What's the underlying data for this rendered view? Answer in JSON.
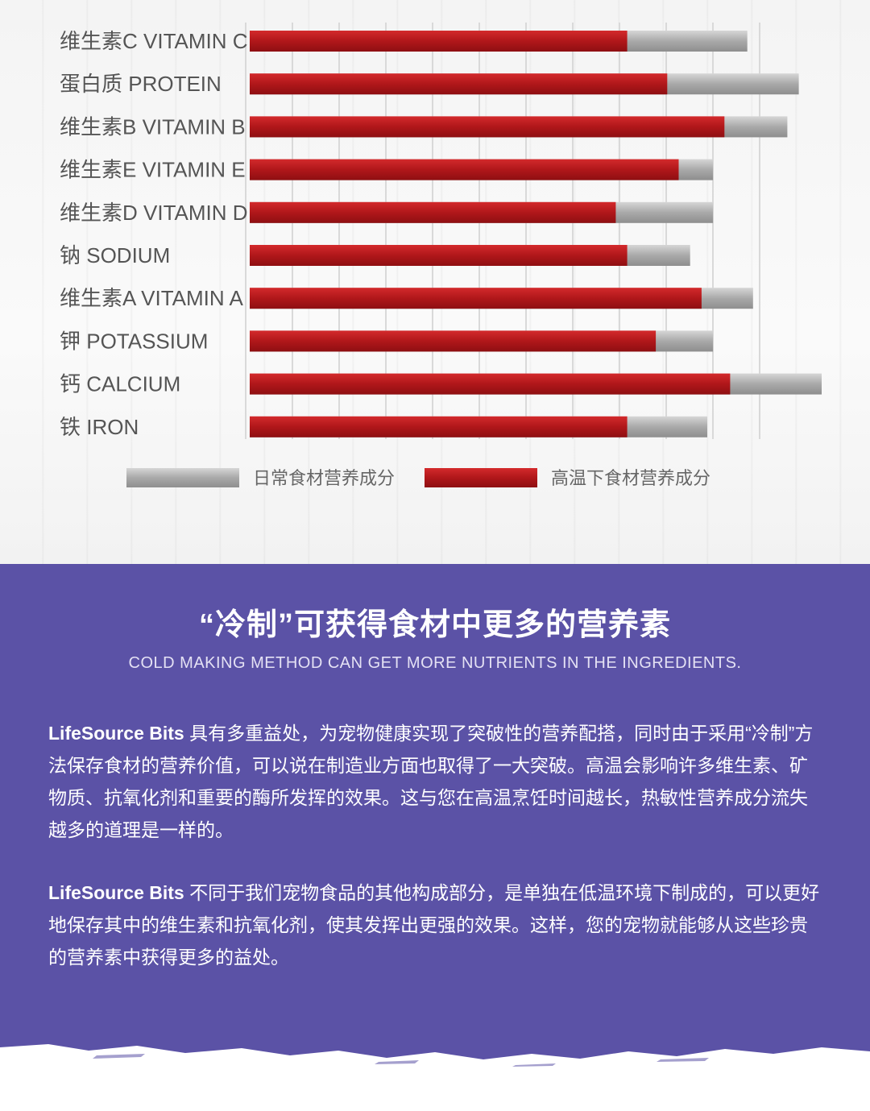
{
  "chart_data": {
    "type": "bar",
    "categories": [
      "维生素C VITAMIN C",
      "蛋白质 PROTEIN",
      "维生素B VITAMIN B",
      "维生素E VITAMIN E",
      "维生素D VITAMIN D",
      "钠 SODIUM",
      "维生素A VITAMIN A",
      "钾 POTASSIUM",
      "钙 CALCIUM",
      "铁 IRON"
    ],
    "series": [
      {
        "name": "日常食材营养成分",
        "color": "#9a9a9a",
        "values": [
          87,
          96,
          94,
          81,
          81,
          77,
          88,
          81,
          100,
          80
        ]
      },
      {
        "name": "高温下食材营养成分",
        "color": "#b5191c",
        "values": [
          66,
          73,
          83,
          75,
          64,
          66,
          79,
          71,
          84,
          66
        ]
      }
    ],
    "xlim": [
      0,
      100
    ],
    "grid": true,
    "legend_position": "bottom"
  },
  "info": {
    "title": "“冷制”可获得食材中更多的营养素",
    "subtitle": "COLD MAKING METHOD CAN GET MORE NUTRIENTS IN THE INGREDIENTS.",
    "p1_brand": "LifeSource Bits",
    "p1_text": " 具有多重益处，为宠物健康实现了突破性的营养配搭，同时由于采用“冷制”方法保存食材的营养价值，可以说在制造业方面也取得了一大突破。高温会影响许多维生素、矿物质、抗氧化剂和重要的酶所发挥的效果。这与您在高温烹饪时间越长，热敏性营养成分流失越多的道理是一样的。",
    "p2_brand": "LifeSource Bits",
    "p2_text": " 不同于我们宠物食品的其他构成部分，是单独在低温环境下制成的，可以更好地保存其中的维生素和抗氧化剂，使其发挥出更强的效果。这样，您的宠物就能够从这些珍贵的营养素中获得更多的益处。"
  }
}
